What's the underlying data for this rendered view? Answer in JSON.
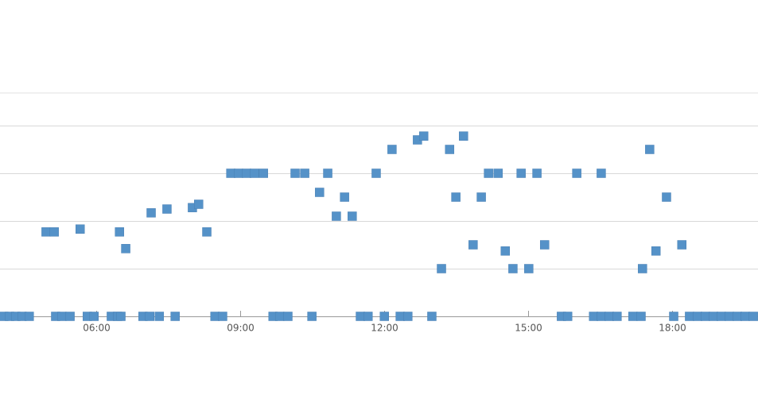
{
  "chart_data": {
    "type": "scatter",
    "x": [
      4.08,
      4.2,
      4.33,
      4.46,
      4.61,
      4.96,
      5.13,
      5.16,
      5.29,
      5.46,
      5.67,
      5.82,
      5.96,
      6.32,
      6.45,
      6.49,
      6.52,
      6.62,
      6.98,
      7.12,
      7.15,
      7.32,
      7.48,
      7.65,
      8.01,
      8.14,
      8.31,
      8.48,
      8.64,
      8.81,
      8.97,
      9.14,
      9.3,
      9.49,
      9.69,
      9.83,
      10.0,
      10.15,
      10.35,
      10.5,
      10.66,
      10.83,
      11.01,
      11.18,
      11.34,
      11.51,
      11.67,
      11.84,
      12.01,
      12.17,
      12.34,
      12.5,
      12.7,
      12.83,
      13.0,
      13.2,
      13.37,
      13.5,
      13.66,
      13.86,
      14.03,
      14.18,
      14.38,
      14.53,
      14.69,
      14.86,
      15.02,
      15.19,
      15.35,
      15.7,
      15.83,
      16.02,
      16.37,
      16.53,
      16.53,
      16.7,
      16.86,
      17.19,
      17.36,
      17.39,
      17.54,
      17.67,
      17.89,
      18.04,
      18.21,
      18.37,
      18.54,
      18.7,
      18.87,
      19.03,
      19.2,
      19.37,
      19.53,
      19.7
    ],
    "y": [
      0,
      0,
      0,
      0,
      0,
      1.77,
      1.77,
      0,
      0,
      0,
      1.83,
      0,
      0,
      0,
      0,
      1.77,
      0,
      1.42,
      0,
      0,
      2.17,
      0,
      2.25,
      0,
      2.28,
      2.35,
      1.77,
      0,
      0,
      3,
      3,
      3,
      3,
      3,
      0,
      0,
      0,
      3,
      3,
      0,
      2.6,
      3,
      2.1,
      2.5,
      2.1,
      0,
      0,
      3,
      0,
      3.5,
      0,
      0,
      3.7,
      3.78,
      0,
      1,
      3.5,
      2.5,
      3.78,
      1.5,
      2.5,
      3,
      3,
      1.37,
      1,
      3,
      1,
      3,
      1.5,
      0,
      0,
      3,
      0,
      0,
      3,
      0,
      0,
      0,
      0,
      1,
      3.5,
      1.37,
      2.5,
      0,
      1.5,
      0,
      0,
      0,
      0,
      0,
      0,
      0,
      0,
      0
    ],
    "color": "#5592c8",
    "xlim": [
      4,
      19.8
    ],
    "xticks": [
      {
        "value": 6,
        "label": "06:00"
      },
      {
        "value": 9,
        "label": "09:00"
      },
      {
        "value": 12,
        "label": "12:00"
      },
      {
        "value": 15,
        "label": "15:00"
      },
      {
        "value": 18,
        "label": "18:00"
      }
    ],
    "ylim": [
      0,
      4.7
    ],
    "yticks": [
      0,
      1,
      2,
      3,
      4
    ],
    "grid": true
  }
}
